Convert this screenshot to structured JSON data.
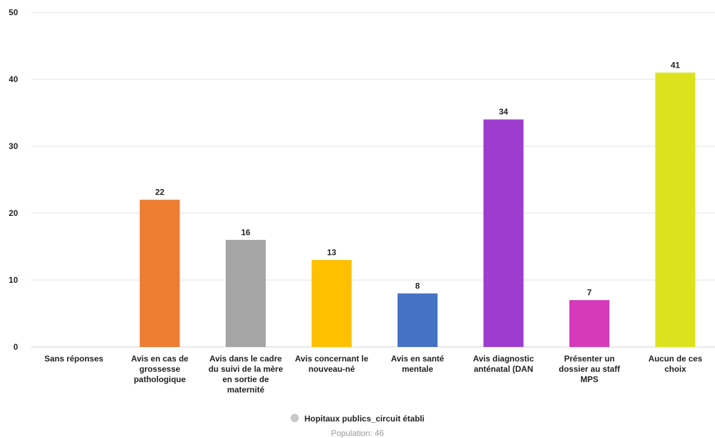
{
  "chart_data": {
    "type": "bar",
    "categories": [
      "Sans réponses",
      "Avis en cas de grossesse pathologique",
      "Avis dans le cadre du suivi de la mère en sortie de maternité",
      "Avis concernant le nouveau-né",
      "Avis en santé mentale",
      "Avis diagnostic anténatal (DAN",
      "Présenter un dossier au staff MPS",
      "Aucun de ces choix"
    ],
    "category_lines": [
      [
        "Sans réponses"
      ],
      [
        "Avis en cas de",
        "grossesse",
        "pathologique"
      ],
      [
        "Avis dans le cadre",
        "du suivi de la mère",
        "en sortie de",
        "maternité"
      ],
      [
        "Avis concernant le",
        "nouveau-né"
      ],
      [
        "Avis en santé",
        "mentale"
      ],
      [
        "Avis diagnostic",
        "anténatal (DAN"
      ],
      [
        "Présenter un",
        "dossier au staff",
        "MPS"
      ],
      [
        "Aucun de ces",
        "choix"
      ]
    ],
    "values": [
      null,
      22,
      16,
      13,
      8,
      34,
      7,
      41
    ],
    "colors": [
      "#cccccc",
      "#ed7d31",
      "#a5a5a5",
      "#ffc000",
      "#4472c4",
      "#9e3ccf",
      "#d63aba",
      "#dde21f"
    ],
    "ylim": [
      0,
      50
    ],
    "yticks": [
      0,
      10,
      20,
      30,
      40,
      50
    ],
    "grid": true,
    "legend_position": "bottom-center",
    "series_name": "Hopitaux publics_circuit établi"
  },
  "legend": {
    "series_name": "Hopitaux publics_circuit établi",
    "marker_color": "#c8c8c8"
  },
  "population_label": "Population: 46"
}
